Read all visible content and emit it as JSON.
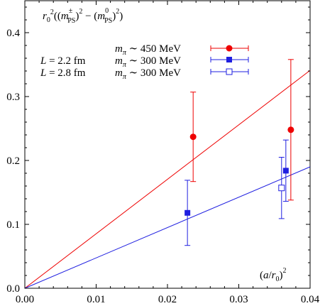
{
  "chart_data": {
    "type": "scatter",
    "title": "",
    "ylabel": "r0²((mPS±)² − (mPS0)²)",
    "xlabel": "(a/r0)²",
    "xlim": [
      0.0,
      0.04
    ],
    "ylim": [
      0.0,
      0.45
    ],
    "x_ticks": [
      "0.00",
      "0.01",
      "0.02",
      "0.03",
      "0.04"
    ],
    "x_tick_values": [
      0.0,
      0.01,
      0.02,
      0.03,
      0.04
    ],
    "y_ticks": [
      "0.0",
      "0.1",
      "0.2",
      "0.3",
      "0.4"
    ],
    "y_tick_values": [
      0.0,
      0.1,
      0.2,
      0.3,
      0.4
    ],
    "legend_placement": "top-left",
    "series": [
      {
        "name": "mπ ∼ 450 MeV",
        "color": "#ee0000",
        "marker": "filled-circle",
        "points": [
          {
            "x": 0.0236,
            "y": 0.237,
            "yerr_low": 0.07,
            "yerr_high": 0.07,
            "xerr": 0.0
          },
          {
            "x": 0.0373,
            "y": 0.248,
            "yerr_low": 0.11,
            "yerr_high": 0.11,
            "xerr": 0.0
          }
        ],
        "fit": {
          "x": [
            0.0,
            0.04
          ],
          "y": [
            0.0,
            0.341
          ]
        }
      },
      {
        "name": "mπ ∼ 300 MeV",
        "group_label": "L = 2.2 fm",
        "color": "#1f1fe0",
        "marker": "filled-square",
        "points": [
          {
            "x": 0.0228,
            "y": 0.118,
            "yerr_low": 0.051,
            "yerr_high": 0.051,
            "xerr": 0.0
          },
          {
            "x": 0.0366,
            "y": 0.184,
            "yerr_low": 0.048,
            "yerr_high": 0.048,
            "xerr": 0.0
          }
        ],
        "fit": {
          "x": [
            0.0,
            0.04
          ],
          "y": [
            0.0,
            0.19
          ]
        }
      },
      {
        "name": "mπ ∼ 300 MeV",
        "group_label": "L = 2.8 fm",
        "color": "#1f1fe0",
        "marker": "open-square",
        "points": [
          {
            "x": 0.036,
            "y": 0.157,
            "yerr_low": 0.048,
            "yerr_high": 0.048,
            "xerr": 0.0
          }
        ]
      }
    ]
  }
}
